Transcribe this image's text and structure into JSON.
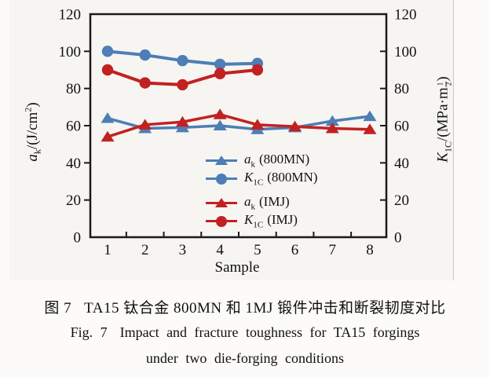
{
  "caption": {
    "zh_label": "图 7",
    "zh_text": "TA15 钛合金 800MN 和 1MJ 锻件冲击和断裂韧度对比",
    "en_label": "Fig. 7",
    "en_text": "Impact and fracture toughness for TA15 forgings",
    "en_text2": "under two die-forging conditions"
  },
  "axes": {
    "left": {
      "var": "a",
      "sub": "k",
      "pre": "/(J/cm",
      "sup": "2",
      "post": ")"
    },
    "right": {
      "var": "K",
      "sub": "1C",
      "pre": "/(MPa·m",
      "frac_num": "1",
      "frac_den": "2",
      "post": ")"
    }
  },
  "legend": {
    "items": [
      {
        "var": "a",
        "sub": "k",
        "cond": "(800MN)",
        "color": "#4d7eb5",
        "marker": "triangle"
      },
      {
        "var": "K",
        "sub": "1C",
        "cond": "(800MN)",
        "color": "#4d7eb5",
        "marker": "circle"
      },
      {
        "var": "a",
        "sub": "k",
        "cond": "(IMJ)",
        "color": "#c22121",
        "marker": "triangle"
      },
      {
        "var": "K",
        "sub": "1C",
        "cond": "(IMJ)",
        "color": "#c22121",
        "marker": "circle"
      }
    ]
  },
  "colors": {
    "blue": "#4d7eb5",
    "red": "#c22121",
    "axis": "#1a1a1a",
    "scan_background": "#f6f5f2",
    "column_rule": "#c9c7c3"
  },
  "chart_data": {
    "type": "line",
    "x": [
      1,
      2,
      3,
      4,
      5,
      6,
      7,
      8
    ],
    "xlabel": "Sample",
    "ylabel_left": "a_k/(J/cm^2)",
    "ylabel_right": "K_1C/(MPa·m^(1/2))",
    "ylim": [
      0,
      120
    ],
    "yticks": [
      0,
      20,
      40,
      60,
      80,
      100,
      120
    ],
    "grid": false,
    "legend_position": "inside lower right",
    "series": [
      {
        "name": "a_k (800MN)",
        "marker": "triangle",
        "color": "#4d7eb5",
        "values": [
          64,
          58.5,
          59,
          60,
          58,
          59,
          62.5,
          65
        ]
      },
      {
        "name": "K_1C (800MN)",
        "marker": "circle",
        "color": "#4d7eb5",
        "values": [
          100,
          98,
          95,
          93,
          93.5,
          null,
          null,
          null
        ]
      },
      {
        "name": "a_k (IMJ)",
        "marker": "triangle",
        "color": "#c22121",
        "values": [
          54,
          60.5,
          62,
          66,
          60.5,
          59.5,
          58.5,
          58
        ]
      },
      {
        "name": "K_1C (IMJ)",
        "marker": "circle",
        "color": "#c22121",
        "values": [
          90,
          83,
          82,
          88,
          90,
          null,
          null,
          null
        ]
      }
    ]
  }
}
